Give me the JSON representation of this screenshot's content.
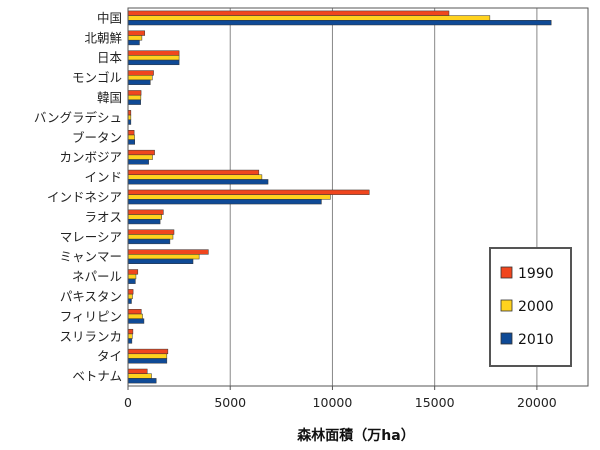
{
  "chart_data": {
    "type": "bar",
    "orientation": "horizontal",
    "title": "",
    "xlabel": "森林面積（万ha）",
    "ylabel": "",
    "xlim": [
      0,
      22500
    ],
    "xticks": [
      0,
      5000,
      10000,
      15000,
      20000
    ],
    "grid": true,
    "legend_position": "right",
    "categories": [
      "中国",
      "北朝鮮",
      "日本",
      "モンゴル",
      "韓国",
      "バングラデシュ",
      "ブータン",
      "カンボジア",
      "インド",
      "インドネシア",
      "ラオス",
      "マレーシア",
      "ミャンマー",
      "ネパール",
      "パキスタン",
      "フィリピン",
      "スリランカ",
      "タイ",
      "ベトナム"
    ],
    "series": [
      {
        "name": "1990",
        "color": "#f0461e",
        "values": [
          15700,
          820,
          2500,
          1250,
          640,
          140,
          300,
          1300,
          6400,
          11800,
          1730,
          2250,
          3930,
          480,
          250,
          650,
          240,
          1950,
          940
        ]
      },
      {
        "name": "2000",
        "color": "#ffd21e",
        "values": [
          17700,
          680,
          2500,
          1190,
          630,
          140,
          320,
          1200,
          6550,
          9900,
          1650,
          2200,
          3480,
          390,
          220,
          710,
          210,
          1900,
          1150
        ]
      },
      {
        "name": "2010",
        "color": "#0f4a96",
        "values": [
          20700,
          560,
          2500,
          1090,
          620,
          140,
          330,
          1010,
          6850,
          9460,
          1570,
          2050,
          3180,
          360,
          170,
          780,
          190,
          1900,
          1380
        ]
      }
    ]
  }
}
